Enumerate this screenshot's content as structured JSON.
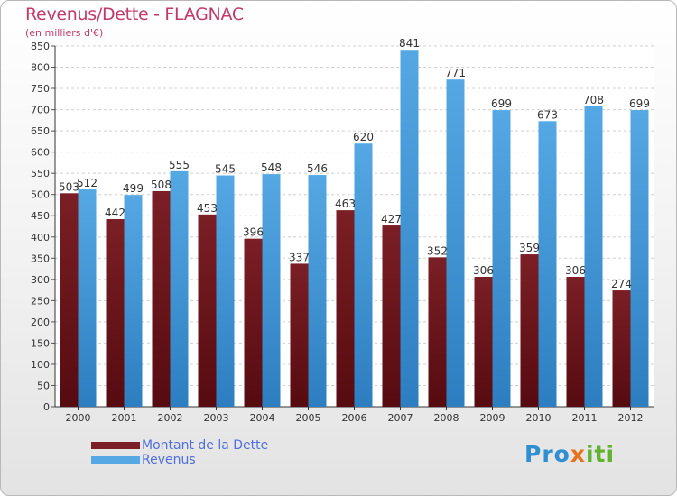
{
  "header": {
    "title": "Revenus/Dette - FLAGNAC",
    "subtitle": "(en milliers d'€)"
  },
  "colors": {
    "debt": "#7a1f25",
    "debt_dark": "#560b10",
    "revenue": "#55a8e3",
    "revenue_dark": "#2d7ec0",
    "title": "#c03a6a",
    "legend_text": "#4f6fdc"
  },
  "legend": {
    "debt_label": "Montant de la Dette",
    "revenue_label": "Revenus"
  },
  "logo": {
    "text_a": "Pro",
    "text_b": "x",
    "text_c": "iti"
  },
  "chart_data": {
    "type": "bar",
    "title": "Revenus/Dette - FLAGNAC",
    "subtitle": "(en milliers d'€)",
    "categories": [
      "2000",
      "2001",
      "2002",
      "2003",
      "2004",
      "2005",
      "2006",
      "2007",
      "2008",
      "2009",
      "2010",
      "2011",
      "2012"
    ],
    "series": [
      {
        "name": "Montant de la Dette",
        "values": [
          503,
          442,
          508,
          453,
          396,
          337,
          463,
          427,
          352,
          306,
          359,
          306,
          274
        ]
      },
      {
        "name": "Revenus",
        "values": [
          512,
          499,
          555,
          545,
          548,
          546,
          620,
          841,
          771,
          699,
          673,
          708,
          699
        ]
      }
    ],
    "ylim": [
      0,
      850
    ],
    "ytick_step": 50,
    "grid": true,
    "legend_position": "bottom-left"
  }
}
